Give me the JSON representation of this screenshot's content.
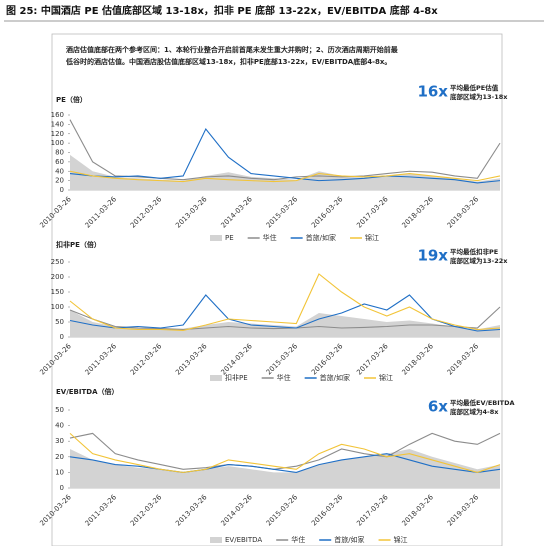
{
  "header": {
    "title": "图 25: 中国酒店 PE 估值底部区域 13-18x，扣非 PE 底部 13-22x，EV/EBITDA 底部 4-8x"
  },
  "description": [
    "酒店估值底部在两个参考区间：1、本轮行业整合开启前首尾未发生重大并购时；2、历次酒店周期开始前最",
    "低谷时的酒店估值。中国酒店股估值底部区域13-18x，扣非PE底部13-22x，EV/EBITDA底部4-8x。"
  ],
  "chart_data": [
    {
      "type": "line",
      "ylabel": "PE（倍）",
      "ylim": [
        0,
        160
      ],
      "yticks": [
        0,
        20,
        40,
        60,
        80,
        100,
        120,
        140,
        160
      ],
      "grid": false,
      "annotation": {
        "big": "16x",
        "lines": [
          "平均最低PE估值",
          "底部区域为13-18x"
        ]
      },
      "categories": [
        "2010-03-26",
        null,
        "2011-03-26",
        null,
        "2012-03-26",
        null,
        "2013-03-26",
        null,
        "2014-03-26",
        null,
        "2015-03-26",
        null,
        "2016-03-26",
        null,
        "2017-03-26",
        null,
        "2018-03-26",
        null,
        "2019-03-26",
        null
      ],
      "series": [
        {
          "name": "PE",
          "color": "#d3d3d3",
          "area": true,
          "values": [
            75,
            40,
            28,
            25,
            22,
            20,
            30,
            38,
            28,
            25,
            22,
            40,
            30,
            26,
            30,
            35,
            30,
            24,
            18,
            25
          ]
        },
        {
          "name": "华住",
          "color": "#8c8c8c",
          "values": [
            150,
            60,
            30,
            28,
            25,
            22,
            28,
            30,
            25,
            22,
            28,
            30,
            28,
            30,
            35,
            40,
            38,
            30,
            25,
            100
          ]
        },
        {
          "name": "首旅/如家",
          "color": "#1f6fc6",
          "values": [
            35,
            30,
            28,
            30,
            25,
            30,
            130,
            70,
            35,
            30,
            25,
            20,
            22,
            25,
            30,
            28,
            25,
            22,
            15,
            20
          ]
        },
        {
          "name": "锦江",
          "color": "#f2c438",
          "values": [
            40,
            30,
            25,
            22,
            20,
            18,
            25,
            22,
            20,
            18,
            20,
            35,
            30,
            28,
            30,
            35,
            30,
            25,
            20,
            30
          ]
        }
      ]
    },
    {
      "type": "line",
      "ylabel": "扣非PE（倍）",
      "ylim": [
        0,
        250
      ],
      "yticks": [
        0,
        50,
        100,
        150,
        200,
        250
      ],
      "grid": false,
      "annotation": {
        "big": "19x",
        "lines": [
          "平均最低扣非PE",
          "底部区域为13-22x"
        ]
      },
      "categories": [
        "2010-03-26",
        null,
        "2011-03-26",
        null,
        "2012-03-26",
        null,
        "2013-03-26",
        null,
        "2014-03-26",
        null,
        "2015-03-26",
        null,
        "2016-03-26",
        null,
        "2017-03-26",
        null,
        "2018-03-26",
        null,
        "2019-03-26",
        null
      ],
      "series": [
        {
          "name": "扣非PE",
          "color": "#d3d3d3",
          "area": true,
          "values": [
            90,
            50,
            35,
            30,
            30,
            28,
            40,
            50,
            45,
            40,
            35,
            80,
            70,
            60,
            50,
            55,
            45,
            35,
            25,
            40
          ]
        },
        {
          "name": "华住",
          "color": "#8c8c8c",
          "values": [
            90,
            60,
            35,
            30,
            28,
            25,
            30,
            35,
            30,
            28,
            30,
            35,
            30,
            32,
            35,
            40,
            40,
            35,
            30,
            100
          ]
        },
        {
          "name": "首旅/如家",
          "color": "#1f6fc6",
          "values": [
            55,
            40,
            30,
            35,
            30,
            40,
            140,
            60,
            40,
            35,
            30,
            60,
            80,
            110,
            90,
            140,
            60,
            35,
            20,
            25
          ]
        },
        {
          "name": "锦江",
          "color": "#f2c438",
          "values": [
            120,
            60,
            30,
            25,
            25,
            22,
            40,
            60,
            55,
            50,
            45,
            210,
            150,
            100,
            70,
            100,
            60,
            40,
            25,
            30
          ]
        }
      ]
    },
    {
      "type": "line",
      "ylabel": "EV/EBITDA（倍）",
      "ylim": [
        0,
        50
      ],
      "yticks": [
        0,
        10,
        20,
        30,
        40,
        50
      ],
      "grid": false,
      "annotation": {
        "big": "6x",
        "lines": [
          "平均最低EV/EBITDA",
          "底部区域为4-8x"
        ]
      },
      "categories": [
        "2010-03-26",
        null,
        "2011-03-26",
        null,
        "2012-03-26",
        null,
        "2013-03-26",
        null,
        "2014-03-26",
        null,
        "2015-03-26",
        null,
        "2016-03-26",
        null,
        "2017-03-26",
        null,
        "2018-03-26",
        null,
        "2019-03-26",
        null
      ],
      "series": [
        {
          "name": "EV/EBITDA",
          "color": "#d3d3d3",
          "area": true,
          "values": [
            25,
            18,
            15,
            13,
            12,
            10,
            12,
            14,
            12,
            10,
            10,
            15,
            18,
            20,
            22,
            25,
            20,
            16,
            12,
            15
          ]
        },
        {
          "name": "华住",
          "color": "#8c8c8c",
          "values": [
            32,
            35,
            22,
            18,
            15,
            12,
            13,
            15,
            14,
            12,
            14,
            18,
            25,
            22,
            20,
            28,
            35,
            30,
            28,
            35
          ]
        },
        {
          "name": "首旅/如家",
          "color": "#1f6fc6",
          "values": [
            20,
            18,
            15,
            14,
            12,
            10,
            12,
            15,
            14,
            12,
            10,
            15,
            18,
            20,
            22,
            18,
            14,
            12,
            10,
            12
          ]
        },
        {
          "name": "锦江",
          "color": "#f2c438",
          "values": [
            35,
            22,
            18,
            15,
            12,
            10,
            12,
            18,
            16,
            14,
            12,
            22,
            28,
            25,
            20,
            22,
            18,
            14,
            10,
            15
          ]
        }
      ]
    }
  ]
}
